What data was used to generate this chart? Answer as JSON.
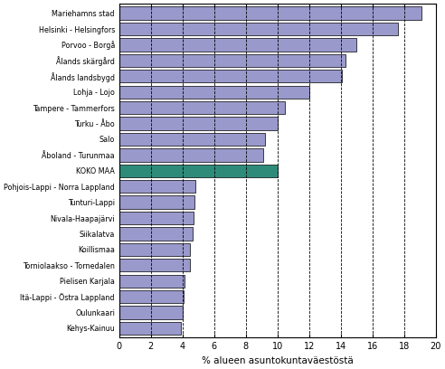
{
  "categories": [
    "Mariehamns stad",
    "Helsinki - Helsingfors",
    "Porvoo - Borgå",
    "Ålands skärgård",
    "Ålands landsbygd",
    "Lohja - Lojo",
    "Tampere - Tammerfors",
    "Turku - Åbo",
    "Salo",
    "Åboland - Turunmaa",
    "KOKO MAA",
    "Pohjois-Lappi - Norra Lappland",
    "Tunturi-Lappi",
    "Nivala-Haapajärvi",
    "Siikalatva",
    "Koillismaa",
    "Torniolaakso - Tornedalen",
    "Pielisen Karjala",
    "Itä-Lappi - Östra Lappland",
    "Oulunkaari",
    "Kehys-Kainuu"
  ],
  "values": [
    19.1,
    17.6,
    15.0,
    14.3,
    14.1,
    12.0,
    10.5,
    10.0,
    9.2,
    9.1,
    10.0,
    4.8,
    4.75,
    4.7,
    4.65,
    4.5,
    4.45,
    4.1,
    4.05,
    4.0,
    3.9
  ],
  "bar_colors": [
    "#9999cc",
    "#9999cc",
    "#9999cc",
    "#9999cc",
    "#9999cc",
    "#9999cc",
    "#9999cc",
    "#9999cc",
    "#9999cc",
    "#9999cc",
    "#2e8b7a",
    "#9999cc",
    "#9999cc",
    "#9999cc",
    "#9999cc",
    "#9999cc",
    "#9999cc",
    "#9999cc",
    "#9999cc",
    "#9999cc",
    "#9999cc"
  ],
  "xlabel": "% alueen asuntokuntaväestöstä",
  "xlim": [
    0,
    20
  ],
  "xticks": [
    0,
    2,
    4,
    6,
    8,
    10,
    12,
    14,
    16,
    18,
    20
  ],
  "background_color": "#ffffff",
  "bar_edge_color": "#000000",
  "bar_linewidth": 0.5
}
